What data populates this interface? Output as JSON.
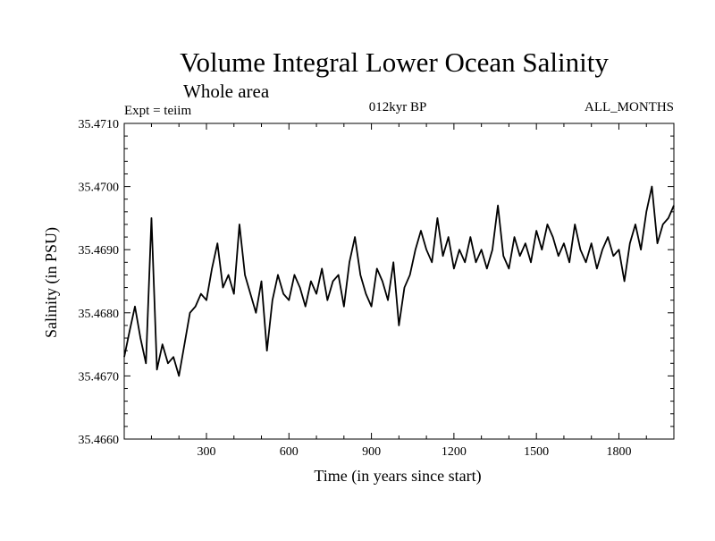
{
  "colors": {
    "background": "#ffffff",
    "ink": "#000000"
  },
  "chart_data": {
    "type": "line",
    "title": "Volume Integral Lower Ocean Salinity",
    "subtitle": "Whole area",
    "expt_label": "Expt = teiim",
    "period_label": "012kyr BP",
    "months_label": "ALL_MONTHS",
    "xlabel": "Time (in years since start)",
    "ylabel": "Salinity (in PSU)",
    "xlim": [
      1,
      2000
    ],
    "ylim": [
      35.466,
      35.471
    ],
    "xticks": [
      300,
      600,
      900,
      1200,
      1500,
      1800
    ],
    "xtick_labels": [
      "300",
      "600",
      "900",
      "1200",
      "1500",
      "1800"
    ],
    "yticks": [
      35.466,
      35.467,
      35.468,
      35.469,
      35.47,
      35.471
    ],
    "ytick_labels": [
      "35.4660",
      "35.4670",
      "35.4680",
      "35.4690",
      "35.4700",
      "35.4710"
    ],
    "grid": false,
    "series": [
      {
        "name": "Salinity",
        "x": [
          1,
          20,
          40,
          60,
          80,
          100,
          120,
          140,
          160,
          180,
          200,
          220,
          240,
          260,
          280,
          300,
          320,
          340,
          360,
          380,
          400,
          420,
          440,
          460,
          480,
          500,
          520,
          540,
          560,
          580,
          600,
          620,
          640,
          660,
          680,
          700,
          720,
          740,
          760,
          780,
          800,
          820,
          840,
          860,
          880,
          900,
          920,
          940,
          960,
          980,
          1000,
          1020,
          1040,
          1060,
          1080,
          1100,
          1120,
          1140,
          1160,
          1180,
          1200,
          1220,
          1240,
          1260,
          1280,
          1300,
          1320,
          1340,
          1360,
          1380,
          1400,
          1420,
          1440,
          1460,
          1480,
          1500,
          1520,
          1540,
          1560,
          1580,
          1600,
          1620,
          1640,
          1660,
          1680,
          1700,
          1720,
          1740,
          1760,
          1780,
          1800,
          1820,
          1840,
          1860,
          1880,
          1900,
          1920,
          1940,
          1960,
          1980,
          2000
        ],
        "values": [
          35.4673,
          35.4677,
          35.4681,
          35.4676,
          35.4672,
          35.4695,
          35.4671,
          35.4675,
          35.4672,
          35.4673,
          35.467,
          35.4675,
          35.468,
          35.4681,
          35.4683,
          35.4682,
          35.4687,
          35.4691,
          35.4684,
          35.4686,
          35.4683,
          35.4694,
          35.4686,
          35.4683,
          35.468,
          35.4685,
          35.4674,
          35.4682,
          35.4686,
          35.4683,
          35.4682,
          35.4686,
          35.4684,
          35.4681,
          35.4685,
          35.4683,
          35.4687,
          35.4682,
          35.4685,
          35.4686,
          35.4681,
          35.4688,
          35.4692,
          35.4686,
          35.4683,
          35.4681,
          35.4687,
          35.4685,
          35.4682,
          35.4688,
          35.4678,
          35.4684,
          35.4686,
          35.469,
          35.4693,
          35.469,
          35.4688,
          35.4695,
          35.4689,
          35.4692,
          35.4687,
          35.469,
          35.4688,
          35.4692,
          35.4688,
          35.469,
          35.4687,
          35.469,
          35.4697,
          35.4689,
          35.4687,
          35.4692,
          35.4689,
          35.4691,
          35.4688,
          35.4693,
          35.469,
          35.4694,
          35.4692,
          35.4689,
          35.4691,
          35.4688,
          35.4694,
          35.469,
          35.4688,
          35.4691,
          35.4687,
          35.469,
          35.4692,
          35.4689,
          35.469,
          35.4685,
          35.4691,
          35.4694,
          35.469,
          35.4696,
          35.47,
          35.4691,
          35.4694,
          35.4695,
          35.4697
        ]
      }
    ]
  }
}
